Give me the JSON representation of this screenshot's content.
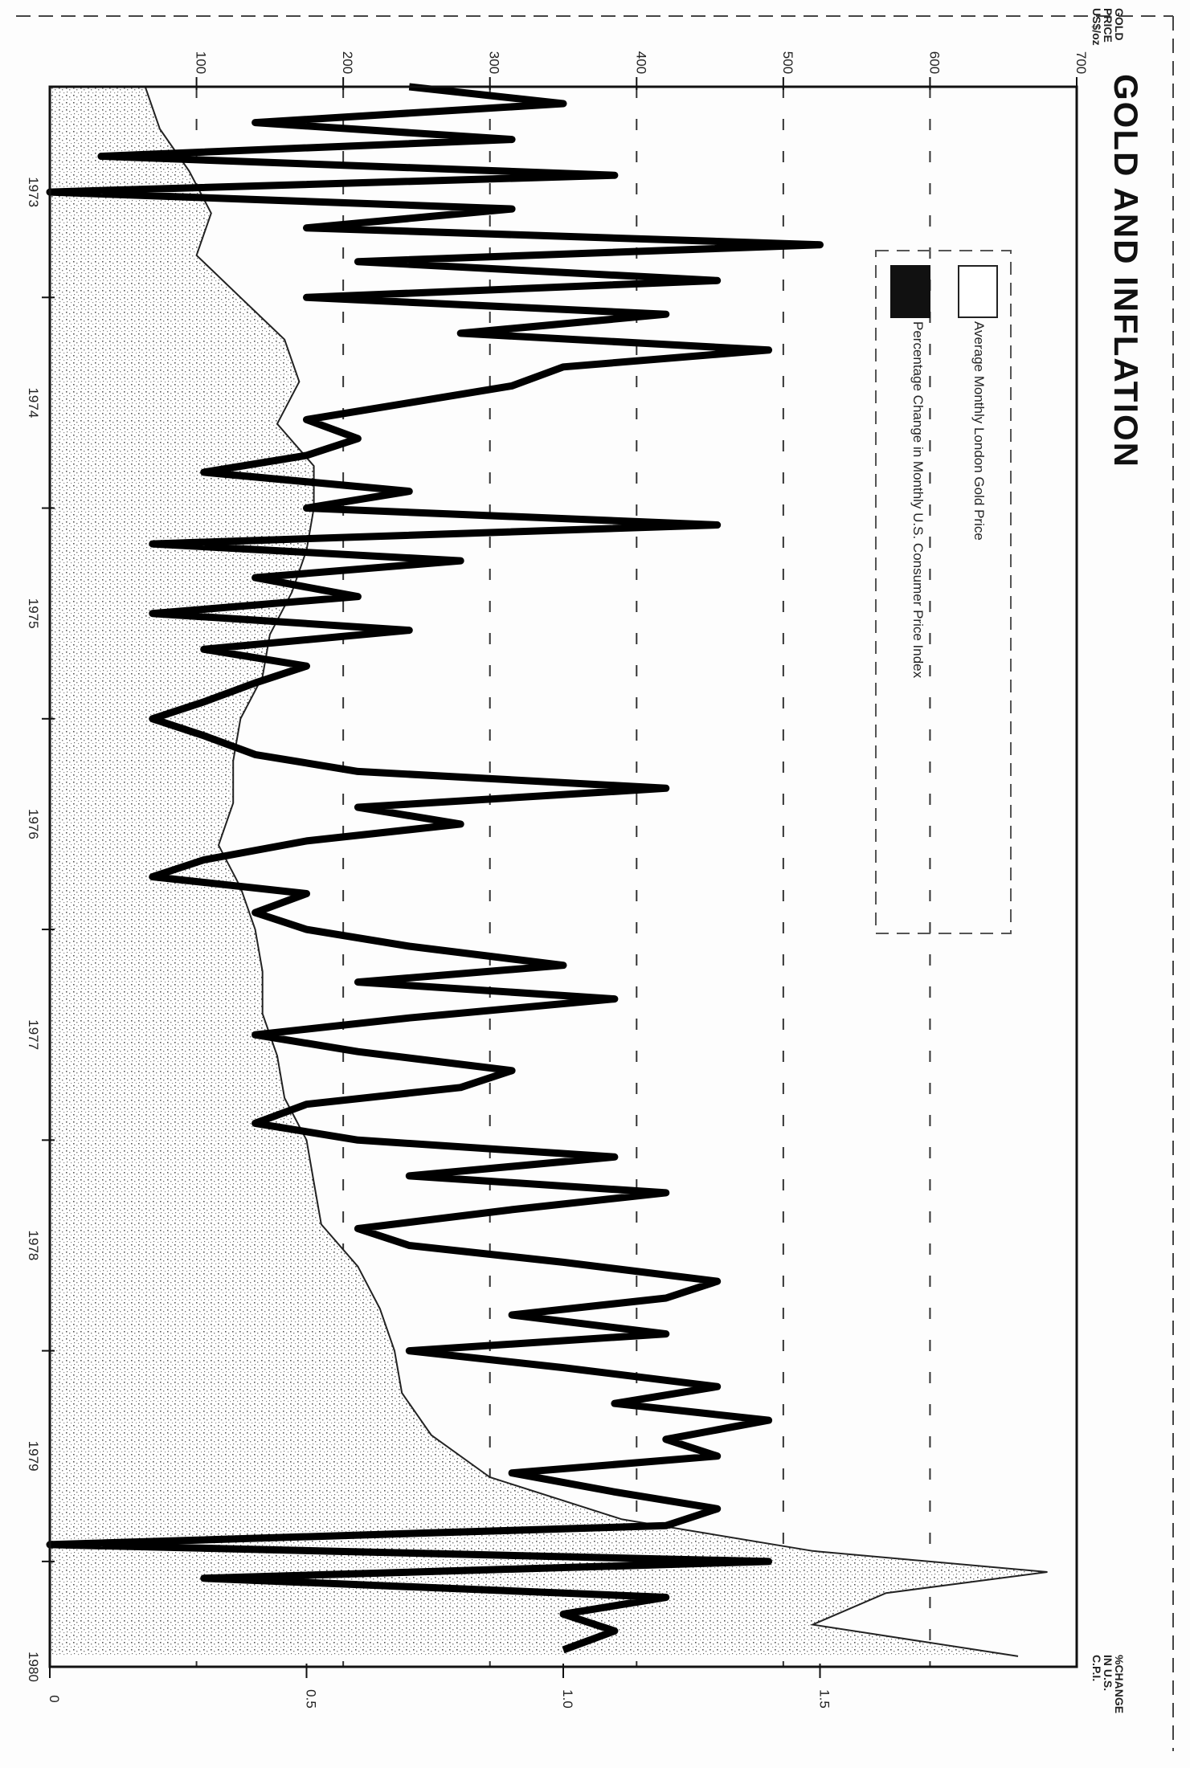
{
  "title": "GOLD AND INFLATION",
  "legend": [
    {
      "label": "Average Monthly London Gold Price",
      "color": "#ffffff"
    },
    {
      "label": "Percentage Change in Monthly U.S. Consumer Price Index",
      "color": "#111111"
    }
  ],
  "axes": {
    "gold_axis_title": [
      "GOLD",
      "PRICE",
      "US$/oz"
    ],
    "cpi_axis_title": [
      "%CHANGE",
      "IN U.S.",
      "C.P.I."
    ]
  },
  "chart_data": {
    "type": "line",
    "title": "GOLD AND INFLATION",
    "orientation": "rotated 90 degrees; time runs top to bottom",
    "x": {
      "label": "",
      "range": [
        1973.0,
        1980.5
      ],
      "ticks": [
        1973,
        1974,
        1975,
        1976,
        1977,
        1978,
        1979,
        1980
      ],
      "tick_labels": [
        "1973",
        "1974",
        "1975",
        "1976",
        "1977",
        "1978",
        "1979",
        "1980"
      ]
    },
    "y_gold": {
      "label": "GOLD PRICE US$/oz",
      "range": [
        0,
        700
      ],
      "ticks": [
        100,
        200,
        300,
        400,
        500,
        600,
        700
      ],
      "tick_labels": [
        "100",
        "200",
        "300",
        "400",
        "500",
        "600",
        "700"
      ]
    },
    "y_cpi": {
      "label": "%CHANGE IN U.S. C.P.I.",
      "range": [
        0,
        2.0
      ],
      "ticks": [
        0,
        0.5,
        1.0,
        1.5
      ],
      "tick_labels": [
        "0",
        "0.5",
        "1.0",
        "1.5"
      ]
    },
    "grid": true,
    "legend_position": "top-right",
    "series": [
      {
        "name": "Average Monthly London Gold Price",
        "style": "area, stippled fill",
        "x": [
          1973.0,
          1973.2,
          1973.4,
          1973.6,
          1973.8,
          1974.0,
          1974.2,
          1974.4,
          1974.6,
          1974.8,
          1975.0,
          1975.2,
          1975.4,
          1975.6,
          1975.8,
          1976.0,
          1976.2,
          1976.4,
          1976.6,
          1976.8,
          1977.0,
          1977.2,
          1977.4,
          1977.6,
          1977.8,
          1978.0,
          1978.2,
          1978.4,
          1978.6,
          1978.8,
          1979.0,
          1979.2,
          1979.4,
          1979.6,
          1979.8,
          1979.95,
          1980.05,
          1980.15,
          1980.3,
          1980.45
        ],
        "values": [
          65,
          75,
          95,
          110,
          100,
          130,
          160,
          170,
          155,
          180,
          180,
          175,
          165,
          150,
          145,
          130,
          125,
          125,
          115,
          130,
          140,
          145,
          145,
          155,
          160,
          175,
          180,
          185,
          210,
          225,
          235,
          240,
          260,
          300,
          390,
          520,
          680,
          570,
          520,
          660
        ]
      },
      {
        "name": "Percentage Change in Monthly U.S. Consumer Price Index",
        "style": "heavy line",
        "x": [
          1973.0,
          1973.08,
          1973.17,
          1973.25,
          1973.33,
          1973.42,
          1973.5,
          1973.58,
          1973.67,
          1973.75,
          1973.83,
          1973.92,
          1974.0,
          1974.08,
          1974.17,
          1974.25,
          1974.33,
          1974.42,
          1974.5,
          1974.58,
          1974.67,
          1974.75,
          1974.83,
          1974.92,
          1975.0,
          1975.08,
          1975.17,
          1975.25,
          1975.33,
          1975.42,
          1975.5,
          1975.58,
          1975.67,
          1975.75,
          1975.83,
          1975.92,
          1976.0,
          1976.08,
          1976.17,
          1976.25,
          1976.33,
          1976.42,
          1976.5,
          1976.58,
          1976.67,
          1976.75,
          1976.83,
          1976.92,
          1977.0,
          1977.08,
          1977.17,
          1977.25,
          1977.33,
          1977.42,
          1977.5,
          1977.58,
          1977.67,
          1977.75,
          1977.83,
          1977.92,
          1978.0,
          1978.08,
          1978.17,
          1978.25,
          1978.33,
          1978.42,
          1978.5,
          1978.58,
          1978.67,
          1978.75,
          1978.83,
          1978.92,
          1979.0,
          1979.08,
          1979.17,
          1979.25,
          1979.33,
          1979.42,
          1979.5,
          1979.58,
          1979.67,
          1979.75,
          1979.83,
          1979.92,
          1980.0,
          1980.08,
          1980.17,
          1980.25,
          1980.33,
          1980.42
        ],
        "values": [
          0.7,
          1.0,
          0.4,
          0.9,
          0.1,
          1.1,
          0.0,
          0.9,
          0.5,
          1.5,
          0.6,
          1.3,
          0.5,
          1.2,
          0.8,
          1.4,
          1.0,
          0.9,
          0.7,
          0.5,
          0.6,
          0.5,
          0.3,
          0.7,
          0.5,
          1.3,
          0.2,
          0.8,
          0.4,
          0.6,
          0.2,
          0.7,
          0.3,
          0.5,
          0.4,
          0.3,
          0.2,
          0.3,
          0.4,
          0.6,
          1.2,
          0.6,
          0.8,
          0.5,
          0.3,
          0.2,
          0.5,
          0.4,
          0.5,
          0.7,
          1.0,
          0.6,
          1.1,
          0.7,
          0.4,
          0.6,
          0.9,
          0.8,
          0.5,
          0.4,
          0.6,
          1.1,
          0.7,
          1.2,
          0.9,
          0.6,
          0.7,
          1.0,
          1.3,
          1.2,
          0.9,
          1.2,
          0.7,
          1.0,
          1.3,
          1.1,
          1.4,
          1.2,
          1.3,
          0.9,
          1.1,
          1.3,
          1.2,
          0.0,
          1.4,
          0.3,
          1.2,
          1.0,
          1.1,
          1.0
        ]
      }
    ]
  }
}
